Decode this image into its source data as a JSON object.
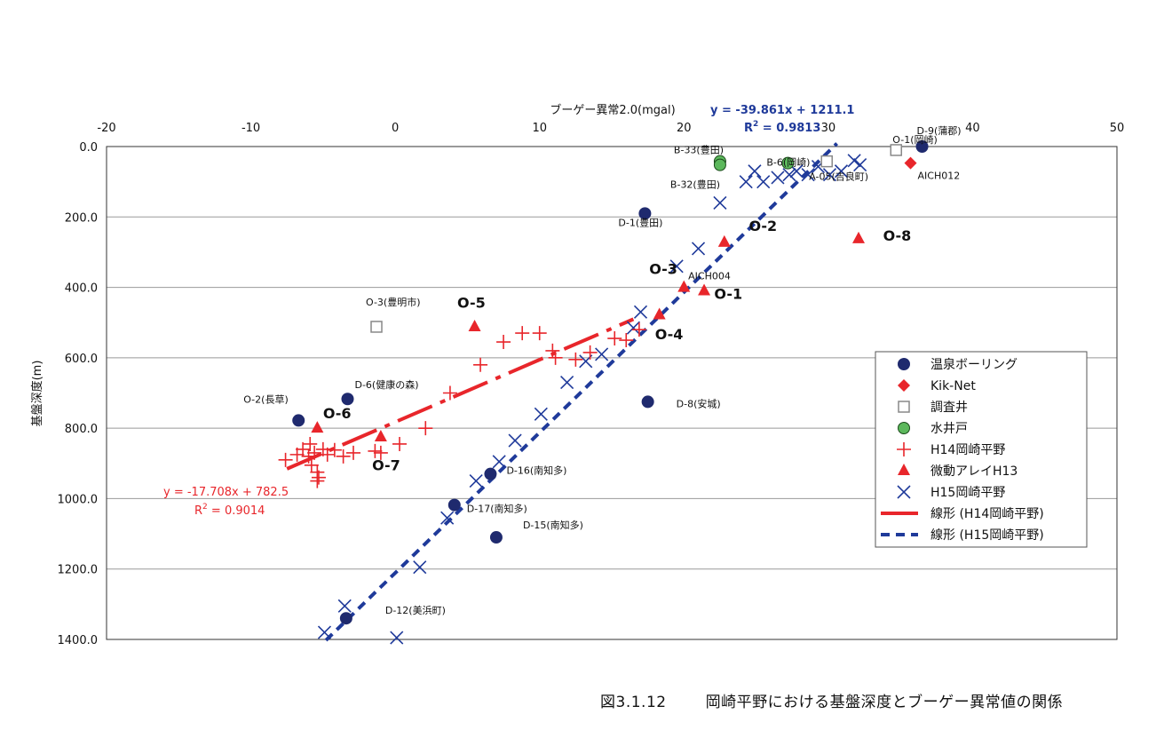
{
  "caption": {
    "number": "図3.1.12",
    "text": "岡崎平野における基盤深度とブーゲー異常値の関係"
  },
  "chart_data": {
    "type": "scatter",
    "xlabel": "ブーゲー異常2.0(mgal)",
    "ylabel": "基盤深度(m)",
    "xlim": [
      -20,
      50
    ],
    "ylim": [
      0,
      1400
    ],
    "x_ticks": [
      "-20",
      "-10",
      "0",
      "10",
      "20",
      "30",
      "40",
      "50"
    ],
    "y_ticks": [
      "0.0",
      "200.0",
      "400.0",
      "600.0",
      "800.0",
      "1000.0",
      "1200.0",
      "1400.0"
    ],
    "x_axis_position": "top",
    "y_inverted": true,
    "grid": "horizontal",
    "legend_position": "right",
    "series": [
      {
        "name": "温泉ボーリング",
        "marker": "circle",
        "color": "#1f2a6e",
        "points": [
          {
            "x": 36.5,
            "y": 0,
            "label": "D-9(蒲郡)"
          },
          {
            "x": 17.3,
            "y": 190,
            "label": "D-1(豊田)"
          },
          {
            "x": 17.5,
            "y": 725,
            "label": "D-8(安城)"
          },
          {
            "x": -3.3,
            "y": 717,
            "label": "D-6(健康の森)"
          },
          {
            "x": -6.7,
            "y": 778,
            "label": "O-2(長草)"
          },
          {
            "x": 6.6,
            "y": 930,
            "label": "D-16(南知多)"
          },
          {
            "x": 4.1,
            "y": 1018,
            "label": "D-17(南知多)"
          },
          {
            "x": 7.0,
            "y": 1110,
            "label": "D-15(南知多)"
          },
          {
            "x": -3.4,
            "y": 1340,
            "label": "D-12(美浜町)"
          }
        ]
      },
      {
        "name": "Kik-Net",
        "marker": "diamond",
        "color": "#e8262b",
        "points": [
          {
            "x": 35.7,
            "y": 47,
            "label": "AICH012"
          }
        ]
      },
      {
        "name": "調査井",
        "marker": "square-open",
        "color": "#888888",
        "points": [
          {
            "x": 29.9,
            "y": 42,
            "label": "A-05(吉良町)"
          },
          {
            "x": 34.7,
            "y": 10,
            "label": "O-1(岡崎)"
          },
          {
            "x": -1.3,
            "y": 512,
            "label": "O-3(豊明市)"
          }
        ]
      },
      {
        "name": "水井戸",
        "marker": "circle-green",
        "color": "#5cb85c",
        "points": [
          {
            "x": 22.5,
            "y": 42,
            "label": "B-33(豊田)"
          },
          {
            "x": 22.5,
            "y": 52,
            "label": "B-32(豊田)"
          },
          {
            "x": 27.2,
            "y": 47,
            "label": "B-6(岡崎)"
          }
        ]
      },
      {
        "name": "H14岡崎平野",
        "marker": "plus",
        "color": "#e8262b",
        "points": [
          {
            "x": -7.6,
            "y": 890
          },
          {
            "x": -6.8,
            "y": 875
          },
          {
            "x": -6.4,
            "y": 860
          },
          {
            "x": -6.0,
            "y": 880
          },
          {
            "x": -5.9,
            "y": 845
          },
          {
            "x": -5.8,
            "y": 905
          },
          {
            "x": -5.6,
            "y": 870
          },
          {
            "x": -5.4,
            "y": 950
          },
          {
            "x": -5.4,
            "y": 925
          },
          {
            "x": -5.3,
            "y": 940
          },
          {
            "x": -5.0,
            "y": 860
          },
          {
            "x": -4.7,
            "y": 875
          },
          {
            "x": -4.2,
            "y": 862
          },
          {
            "x": -3.6,
            "y": 880
          },
          {
            "x": -2.9,
            "y": 870
          },
          {
            "x": -1.4,
            "y": 865
          },
          {
            "x": -1.0,
            "y": 870
          },
          {
            "x": 0.3,
            "y": 845
          },
          {
            "x": 2.1,
            "y": 800
          },
          {
            "x": 3.8,
            "y": 700
          },
          {
            "x": 5.9,
            "y": 620
          },
          {
            "x": 7.5,
            "y": 555
          },
          {
            "x": 8.8,
            "y": 530
          },
          {
            "x": 10.0,
            "y": 530
          },
          {
            "x": 10.9,
            "y": 580
          },
          {
            "x": 11.1,
            "y": 600
          },
          {
            "x": 12.5,
            "y": 605
          },
          {
            "x": 13.5,
            "y": 585
          },
          {
            "x": 15.2,
            "y": 545
          },
          {
            "x": 16.0,
            "y": 550
          },
          {
            "x": 16.9,
            "y": 520
          }
        ]
      },
      {
        "name": "微動アレイH13",
        "marker": "triangle",
        "color": "#e8262b",
        "points": [
          {
            "x": 22.8,
            "y": 272,
            "label": "O-2"
          },
          {
            "x": 32.1,
            "y": 262,
            "label": "O-8"
          },
          {
            "x": 20.0,
            "y": 400,
            "label": "O-3"
          },
          {
            "x": 21.4,
            "y": 410,
            "label": "O-1"
          },
          {
            "x": 18.3,
            "y": 478,
            "label": "O-4"
          },
          {
            "x": 5.5,
            "y": 512,
            "label": "O-5"
          },
          {
            "x": -5.4,
            "y": 800,
            "label": "O-6"
          },
          {
            "x": -1.0,
            "y": 825,
            "label": "O-7"
          }
        ]
      },
      {
        "name": "H15岡崎平野",
        "marker": "x",
        "color": "#1f3a9a",
        "points": [
          {
            "x": 32.2,
            "y": 52
          },
          {
            "x": 31.8,
            "y": 40
          },
          {
            "x": 30.9,
            "y": 70
          },
          {
            "x": 30.1,
            "y": 80
          },
          {
            "x": 29.3,
            "y": 57
          },
          {
            "x": 28.6,
            "y": 80
          },
          {
            "x": 27.8,
            "y": 70
          },
          {
            "x": 27.3,
            "y": 80
          },
          {
            "x": 26.5,
            "y": 88
          },
          {
            "x": 25.5,
            "y": 100
          },
          {
            "x": 24.9,
            "y": 70
          },
          {
            "x": 24.3,
            "y": 100
          },
          {
            "x": 22.5,
            "y": 160
          },
          {
            "x": 21.0,
            "y": 290
          },
          {
            "x": 19.5,
            "y": 340
          },
          {
            "x": 17.0,
            "y": 470
          },
          {
            "x": 16.5,
            "y": 515
          },
          {
            "x": 14.3,
            "y": 590
          },
          {
            "x": 13.2,
            "y": 610
          },
          {
            "x": 11.9,
            "y": 670
          },
          {
            "x": 10.1,
            "y": 760
          },
          {
            "x": 8.3,
            "y": 835
          },
          {
            "x": 7.2,
            "y": 895
          },
          {
            "x": 5.6,
            "y": 950
          },
          {
            "x": 3.6,
            "y": 1055
          },
          {
            "x": 1.7,
            "y": 1195
          },
          {
            "x": -3.5,
            "y": 1305
          },
          {
            "x": -4.9,
            "y": 1380
          },
          {
            "x": 0.1,
            "y": 1395
          }
        ]
      }
    ],
    "trendlines": [
      {
        "name": "線形 (H14岡崎平野)",
        "series": "H14岡崎平野",
        "style": "solid",
        "color": "#e8262b",
        "slope": -17.708,
        "intercept": 782.5,
        "x_range": [
          -7.5,
          16.5
        ],
        "equation": "y = -17.708x + 782.5",
        "r2_label": "R",
        "r2_sup": "2",
        "r2_value": " = 0.9014"
      },
      {
        "name": "線形 (H15岡崎平野)",
        "series": "H15岡崎平野",
        "style": "dashed",
        "color": "#1f3a9a",
        "slope": -39.861,
        "intercept": 1211.1,
        "x_range": [
          -4.8,
          30.6
        ],
        "equation": "y = -39.861x + 1211.1",
        "r2_label": "R",
        "r2_sup": "2",
        "r2_value": " = 0.9813"
      }
    ],
    "annotations": [
      {
        "text": "O-2",
        "x": 24.5,
        "y": 240,
        "bold": true
      },
      {
        "text": "O-8",
        "x": 33.8,
        "y": 268,
        "bold": true
      },
      {
        "text": "O-3",
        "x": 17.6,
        "y": 362,
        "bold": true
      },
      {
        "text": "O-1",
        "x": 22.1,
        "y": 433,
        "bold": true
      },
      {
        "text": "O-4",
        "x": 18.0,
        "y": 548,
        "bold": true
      },
      {
        "text": "O-5",
        "x": 4.3,
        "y": 458,
        "bold": true
      },
      {
        "text": "O-6",
        "x": -5.0,
        "y": 772,
        "bold": true
      },
      {
        "text": "O-7",
        "x": -1.6,
        "y": 920,
        "bold": true
      }
    ]
  }
}
